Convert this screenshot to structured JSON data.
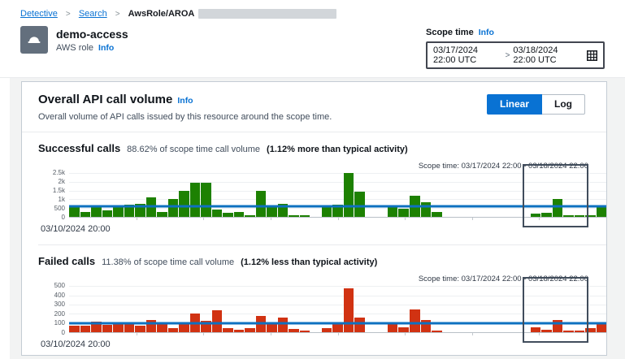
{
  "breadcrumb": {
    "items": [
      {
        "label": "Detective"
      },
      {
        "label": "Search"
      }
    ],
    "current": "AwsRole/AROA",
    "separator": ">"
  },
  "header": {
    "title": "demo-access",
    "subtitle": "AWS role",
    "info_label": "Info"
  },
  "scope_time": {
    "label": "Scope time",
    "info_label": "Info",
    "start": "03/17/2024 22:00 UTC",
    "end": "03/18/2024 22:00 UTC",
    "separator": ">"
  },
  "panel": {
    "title": "Overall API call volume",
    "info_label": "Info",
    "description": "Overall volume of API calls issued by this resource around the scope time.",
    "scale_toggle": {
      "selected": "Linear",
      "unselected": "Log"
    }
  },
  "colors": {
    "accent_blue": "#0972d3",
    "success_green": "#1d8102",
    "failure_red": "#d13212",
    "baseline_blue": "#0e71c0",
    "scope_box_border": "#414d5c"
  },
  "chart_data": [
    {
      "id": "successful-calls",
      "type": "bar",
      "title": "Successful calls",
      "subtitle": "88.62% of scope time call volume",
      "highlight": "(1.12% more than typical activity)",
      "scope_label": "Scope time: 03/17/2024 22:00 - 03/18/2024 22:00",
      "x_start_label": "03/10/2024 20:00",
      "x_bucket": "4 hours per bar",
      "color": "#1d8102",
      "baseline_value": 600,
      "baseline_color": "#0e71c0",
      "ylim": [
        0,
        2600
      ],
      "yticks": [
        {
          "value": 2500,
          "label": "2.5k"
        },
        {
          "value": 2000,
          "label": "2k"
        },
        {
          "value": 1500,
          "label": "1.5k"
        },
        {
          "value": 1000,
          "label": "1k"
        },
        {
          "value": 500,
          "label": "500"
        },
        {
          "value": 0,
          "label": "0"
        }
      ],
      "values": [
        550,
        300,
        650,
        350,
        550,
        700,
        750,
        1100,
        280,
        1000,
        1500,
        1950,
        1950,
        400,
        250,
        300,
        100,
        1500,
        650,
        750,
        100,
        80,
        0,
        550,
        700,
        2500,
        1450,
        0,
        0,
        550,
        450,
        1200,
        850,
        300,
        0,
        0,
        0,
        0,
        0,
        0,
        0,
        0,
        200,
        250,
        1000,
        80,
        80,
        80,
        600
      ],
      "scope_window": {
        "start_index": 41.4,
        "end_index": 47.4
      }
    },
    {
      "id": "failed-calls",
      "type": "bar",
      "title": "Failed calls",
      "subtitle": "11.38% of scope time call volume",
      "highlight": "(1.12% less than typical activity)",
      "scope_label": "Scope time: 03/17/2024 22:00 - 03/18/2024 22:00",
      "x_start_label": "03/10/2024 20:00",
      "x_bucket": "4 hours per bar",
      "color": "#d13212",
      "baseline_value": 100,
      "baseline_color": "#0e71c0",
      "ylim": [
        0,
        520
      ],
      "yticks": [
        {
          "value": 500,
          "label": "500"
        },
        {
          "value": 400,
          "label": "400"
        },
        {
          "value": 300,
          "label": "300"
        },
        {
          "value": 200,
          "label": "200"
        },
        {
          "value": 100,
          "label": "100"
        },
        {
          "value": 0,
          "label": "0"
        }
      ],
      "values": [
        75,
        75,
        115,
        80,
        100,
        85,
        75,
        130,
        100,
        40,
        100,
        200,
        120,
        240,
        40,
        30,
        40,
        175,
        100,
        160,
        35,
        15,
        0,
        40,
        110,
        480,
        160,
        0,
        0,
        90,
        50,
        250,
        130,
        20,
        0,
        0,
        0,
        0,
        0,
        0,
        0,
        0,
        50,
        30,
        130,
        20,
        20,
        45,
        90
      ],
      "scope_window": {
        "start_index": 41.4,
        "end_index": 47.4
      }
    }
  ]
}
